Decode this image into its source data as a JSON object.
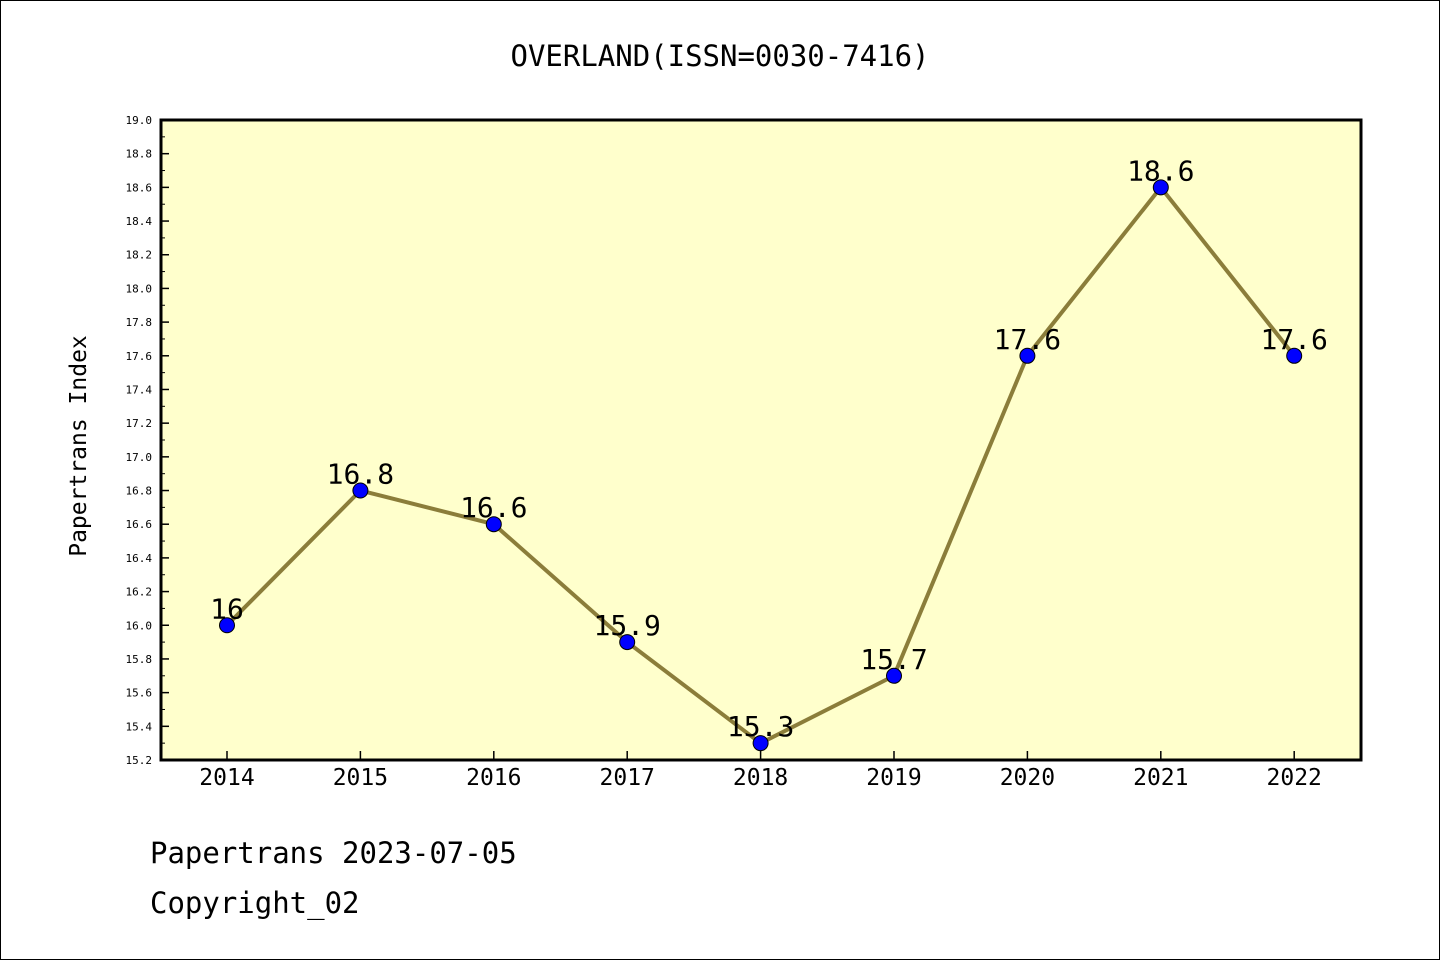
{
  "footer": {
    "line1": "Papertrans 2023-07-05",
    "line2": "Copyright_02"
  },
  "colors": {
    "plot_background": "#ffffcc",
    "line": "#8b7d3a",
    "marker": "#0000ff",
    "axis": "#000000"
  },
  "chart_data": {
    "type": "line",
    "title": "OVERLAND(ISSN=0030-7416)",
    "xlabel": "",
    "ylabel": "Papertrans Index",
    "categories": [
      "2014",
      "2015",
      "2016",
      "2017",
      "2018",
      "2019",
      "2020",
      "2021",
      "2022"
    ],
    "series": [
      {
        "values": [
          16,
          16.8,
          16.6,
          15.9,
          15.3,
          15.7,
          17.6,
          18.6,
          17.6
        ]
      }
    ],
    "data_labels": [
      "16",
      "16.8",
      "16.6",
      "15.9",
      "15.3",
      "15.7",
      "17.6",
      "18.6",
      "17.6"
    ],
    "ylim": [
      15.2,
      19.0
    ],
    "yticks": [
      "15.2",
      "15.4",
      "15.6",
      "15.8",
      "16.0",
      "16.2",
      "16.4",
      "16.6",
      "16.8",
      "17.0",
      "17.2",
      "17.4",
      "17.6",
      "17.8",
      "18.0",
      "18.2",
      "18.4",
      "18.6",
      "18.8",
      "19.0"
    ],
    "grid": false,
    "legend": "none"
  }
}
